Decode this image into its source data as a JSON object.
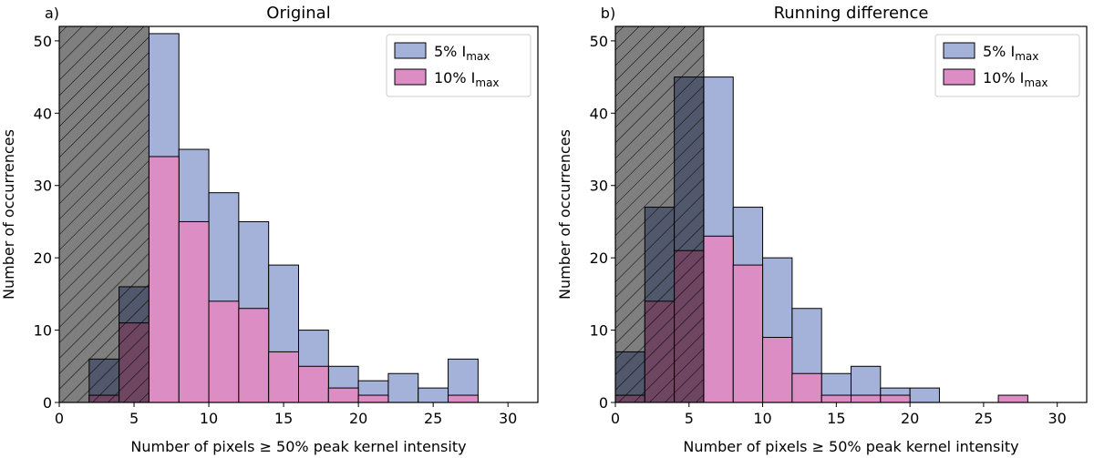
{
  "chart_data": [
    {
      "type": "histogram",
      "label": "a)",
      "title": "Original",
      "xlabel": "Number of pixels ≥ 50% peak kernel intensity",
      "ylabel": "Number of occurrences",
      "bins": [
        2,
        4,
        6,
        8,
        10,
        12,
        14,
        16,
        18,
        20,
        22,
        24,
        26,
        28
      ],
      "series": [
        {
          "name": "5% I",
          "subscript": "max",
          "color": "#a4b1d8",
          "values": [
            6,
            16,
            51,
            35,
            29,
            25,
            19,
            10,
            5,
            3,
            4,
            2,
            6
          ]
        },
        {
          "name": "10% I",
          "subscript": "max",
          "color": "#dc8dc4",
          "values": [
            1,
            11,
            34,
            25,
            14,
            13,
            7,
            5,
            2,
            1,
            0,
            0,
            1
          ]
        }
      ],
      "xlim": [
        0,
        32
      ],
      "ylim": [
        0,
        52
      ],
      "xticks": [
        0,
        5,
        10,
        15,
        20,
        25,
        30
      ],
      "yticks": [
        0,
        10,
        20,
        30,
        40,
        50
      ],
      "shaded_xrange": [
        0,
        6
      ],
      "legend": "upper right"
    },
    {
      "type": "histogram",
      "label": "b)",
      "title": "Running difference",
      "xlabel": "Number of pixels ≥ 50% peak kernel intensity",
      "ylabel": "Number of occurrences",
      "bins": [
        0,
        2,
        4,
        6,
        8,
        10,
        12,
        14,
        16,
        18,
        20,
        22,
        24,
        26,
        28
      ],
      "series": [
        {
          "name": "5% I",
          "subscript": "max",
          "color": "#a4b1d8",
          "values": [
            7,
            27,
            45,
            45,
            27,
            20,
            13,
            4,
            5,
            2,
            2,
            0,
            0,
            0
          ]
        },
        {
          "name": "10% I",
          "subscript": "max",
          "color": "#dc8dc4",
          "values": [
            1,
            14,
            21,
            23,
            19,
            9,
            4,
            1,
            1,
            1,
            0,
            0,
            0,
            1
          ]
        }
      ],
      "xlim": [
        0,
        32
      ],
      "ylim": [
        0,
        52
      ],
      "xticks": [
        0,
        5,
        10,
        15,
        20,
        25,
        30
      ],
      "yticks": [
        0,
        10,
        20,
        30,
        40,
        50
      ],
      "shaded_xrange": [
        0,
        6
      ],
      "legend": "upper right"
    }
  ]
}
